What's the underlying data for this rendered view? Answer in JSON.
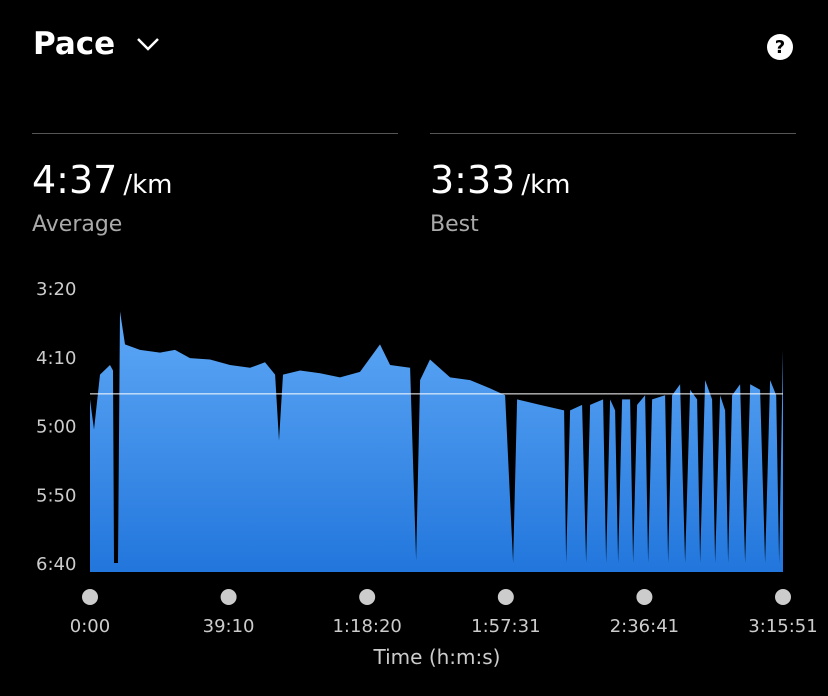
{
  "header": {
    "title": "Pace"
  },
  "stats": [
    {
      "value": "4:37",
      "unit": "/km",
      "label": "Average"
    },
    {
      "value": "3:33",
      "unit": "/km",
      "label": "Best"
    }
  ],
  "chart_data": {
    "type": "area",
    "x_label": "Time (h:m:s)",
    "color_top": "#5ea8f6",
    "color_bottom": "#2276dc",
    "average": 277,
    "average_color": "#ffffff",
    "xlim": [
      0,
      11751
    ],
    "xticks": [
      {
        "value": 0,
        "label": "0:00"
      },
      {
        "value": 2350,
        "label": "39:10"
      },
      {
        "value": 4700,
        "label": "1:18:20"
      },
      {
        "value": 7051,
        "label": "1:57:31"
      },
      {
        "value": 9401,
        "label": "2:36:41"
      },
      {
        "value": 11751,
        "label": "3:15:51"
      }
    ],
    "ylim": [
      400,
      200
    ],
    "yticks": [
      {
        "value": 200,
        "label": "3:20"
      },
      {
        "value": 250,
        "label": "4:10"
      },
      {
        "value": 300,
        "label": "5:00"
      },
      {
        "value": 350,
        "label": "5:50"
      },
      {
        "value": 400,
        "label": "6:40"
      }
    ],
    "x": [
      0,
      68,
      170,
      339,
      390,
      407,
      475,
      509,
      594,
      848,
      1187,
      1442,
      1696,
      2035,
      2374,
      2714,
      2968,
      3138,
      3205,
      3273,
      3562,
      3901,
      4240,
      4579,
      4918,
      5088,
      5427,
      5529,
      5597,
      5766,
      6106,
      6445,
      6784,
      7038,
      7174,
      7242,
      7632,
      8039,
      8073,
      8141,
      8344,
      8412,
      8480,
      8700,
      8751,
      8819,
      8904,
      8955,
      9023,
      9158,
      9209,
      9277,
      9413,
      9464,
      9531,
      9752,
      9803,
      9871,
      10006,
      10091,
      10176,
      10295,
      10346,
      10430,
      10549,
      10600,
      10685,
      10770,
      10820,
      10888,
      11024,
      11109,
      11194,
      11363,
      11448,
      11533,
      11635,
      11685,
      11751
    ],
    "values": [
      281,
      303,
      263,
      256,
      260,
      400,
      400,
      217,
      241,
      245,
      247,
      245,
      251,
      252,
      256,
      258,
      254,
      263,
      311,
      263,
      260,
      262,
      265,
      261,
      241,
      256,
      258,
      398,
      267,
      252,
      265,
      267,
      273,
      278,
      400,
      281,
      285,
      289,
      400,
      289,
      285,
      400,
      285,
      281,
      400,
      281,
      289,
      400,
      281,
      281,
      400,
      285,
      278,
      400,
      281,
      278,
      400,
      278,
      270,
      400,
      274,
      281,
      400,
      267,
      281,
      400,
      278,
      289,
      400,
      278,
      270,
      400,
      270,
      274,
      400,
      267,
      278,
      400,
      245
    ]
  }
}
